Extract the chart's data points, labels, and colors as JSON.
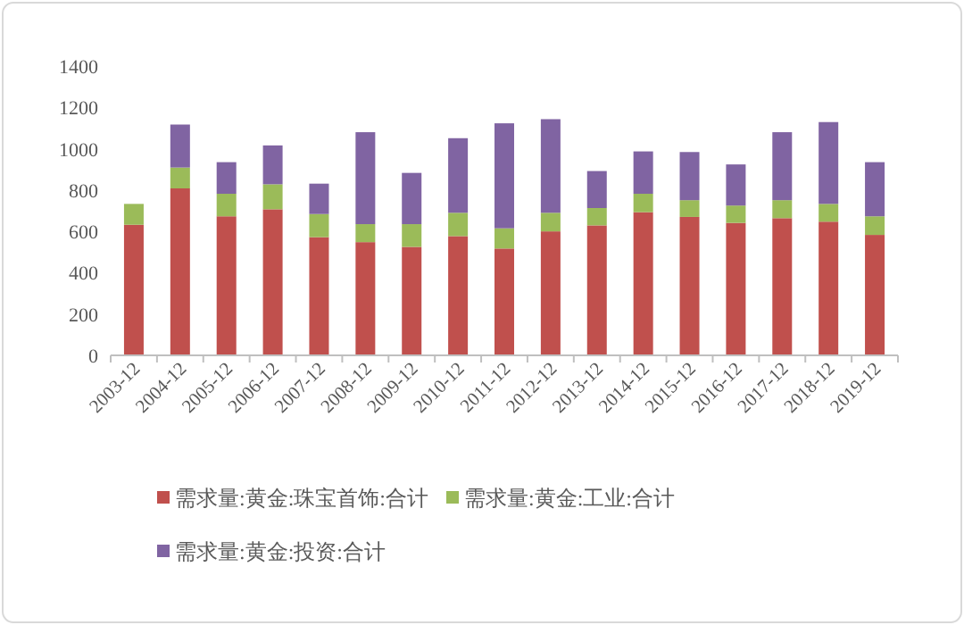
{
  "chart_data": {
    "type": "bar",
    "stacked": true,
    "categories": [
      "2003-12",
      "2004-12",
      "2005-12",
      "2006-12",
      "2007-12",
      "2008-12",
      "2009-12",
      "2010-12",
      "2011-12",
      "2012-12",
      "2013-12",
      "2014-12",
      "2015-12",
      "2016-12",
      "2017-12",
      "2018-12",
      "2019-12"
    ],
    "series": [
      {
        "name": "需求量:黄金:珠宝首饰:合计",
        "color": "#c0504d",
        "values": [
          632,
          808,
          673,
          707,
          572,
          548,
          525,
          577,
          517,
          600,
          629,
          693,
          670,
          641,
          664,
          647,
          583
        ]
      },
      {
        "name": "需求量:黄金:工业:合计",
        "color": "#9bbb59",
        "values": [
          101,
          101,
          109,
          121,
          112,
          87,
          110,
          113,
          98,
          90,
          84,
          89,
          81,
          84,
          87,
          86,
          90
        ]
      },
      {
        "name": "需求量:黄金:投资:合计",
        "color": "#8064a2",
        "values": [
          null,
          208,
          153,
          188,
          147,
          445,
          248,
          361,
          508,
          453,
          179,
          205,
          233,
          199,
          329,
          396,
          262
        ]
      }
    ],
    "ylim": [
      0,
      1400
    ],
    "yticks": [
      0,
      200,
      400,
      600,
      800,
      1000,
      1200,
      1400
    ],
    "grid": false,
    "legend": "bottom"
  }
}
